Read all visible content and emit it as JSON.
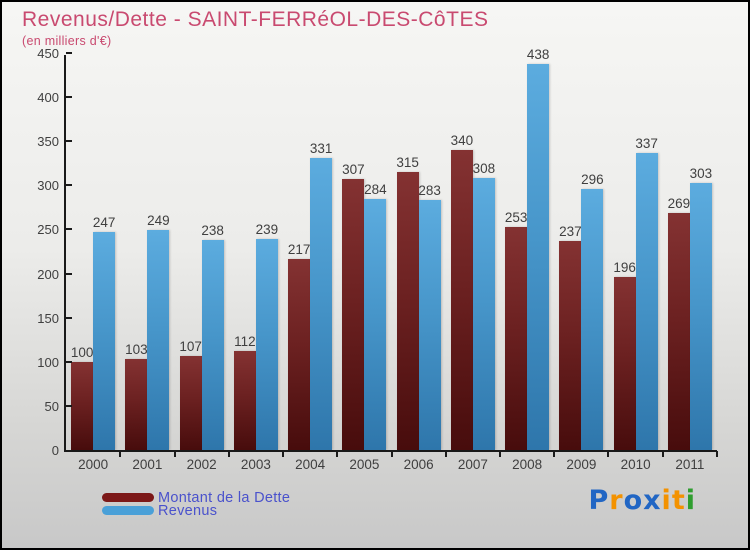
{
  "header": {
    "title": "Revenus/Dette - SAINT-FERRéOL-DES-CôTES",
    "subtitle": "(en milliers d'€)"
  },
  "chart_data": {
    "type": "bar",
    "title": "Revenus/Dette - SAINT-FERRéOL-DES-CôTES",
    "subtitle": "(en milliers d'€)",
    "unit": "milliers d'€",
    "categories": [
      "2000",
      "2001",
      "2002",
      "2003",
      "2004",
      "2005",
      "2006",
      "2007",
      "2008",
      "2009",
      "2010",
      "2011"
    ],
    "series": [
      {
        "name": "Montant de la Dette",
        "color": "#7c1818",
        "values": [
          100,
          103,
          107,
          112,
          217,
          307,
          315,
          340,
          253,
          237,
          196,
          269
        ]
      },
      {
        "name": "Revenus",
        "color": "#4aa0d8",
        "values": [
          247,
          249,
          238,
          239,
          331,
          284,
          283,
          308,
          438,
          296,
          337,
          303
        ]
      }
    ],
    "xlabel": "",
    "ylabel": "",
    "ylim": [
      0,
      450
    ],
    "y_ticks": [
      0,
      50,
      100,
      150,
      200,
      250,
      300,
      350,
      400,
      450
    ],
    "grid": false,
    "value_labels": true,
    "legend_position": "bottom-left"
  },
  "legend": {
    "items": [
      {
        "label": "Montant de la Dette",
        "color": "#7c1818"
      },
      {
        "label": "Revenus",
        "color": "#4aa0d8"
      }
    ]
  },
  "logo": {
    "name": "Proxiti",
    "letters": [
      {
        "ch": "P",
        "color": "#2166c4"
      },
      {
        "ch": "r",
        "color": "#f39200"
      },
      {
        "ch": "o",
        "color": "#2166c4"
      },
      {
        "ch": "x",
        "color": "#2166c4"
      },
      {
        "ch": "i",
        "color": "#f39200"
      },
      {
        "ch": "t",
        "color": "#f39200"
      },
      {
        "ch": "i",
        "color": "#2f9e2f"
      }
    ]
  },
  "colors": {
    "title": "#c94a70",
    "axis_line": "#1a1a1a",
    "tick_text": "#3f3f3f",
    "legend_text": "#4a52cc",
    "background_top": "#f6f6f4",
    "background_bottom": "#c8c8c8"
  }
}
